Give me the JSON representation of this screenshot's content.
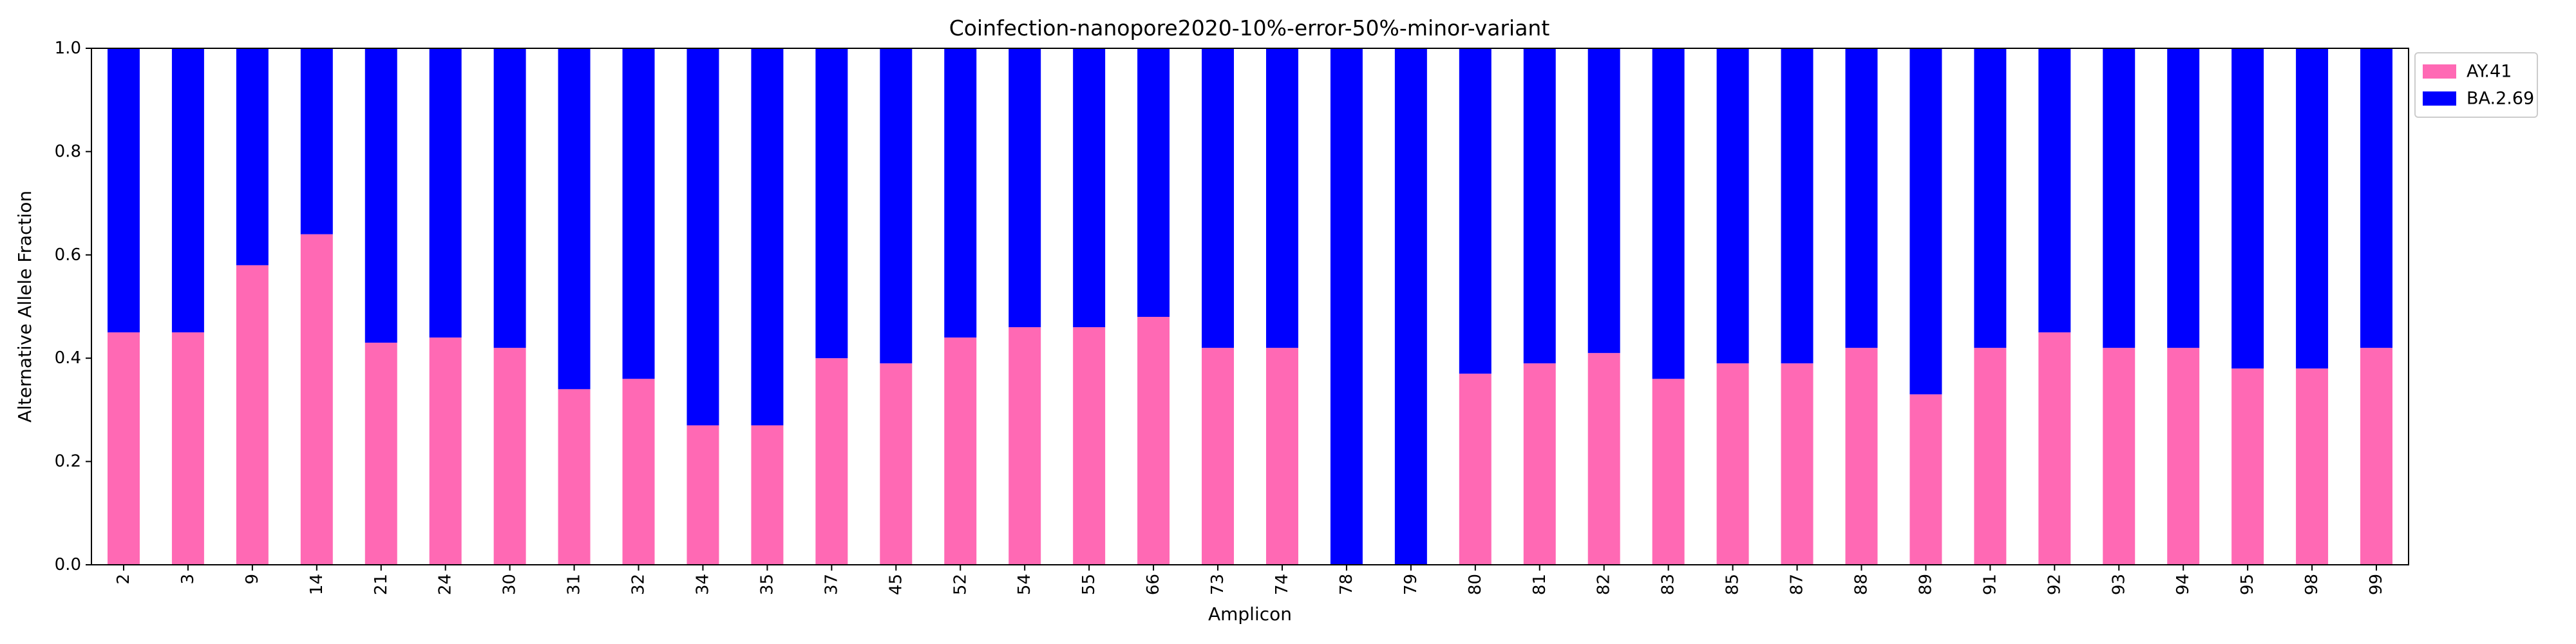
{
  "chart_data": {
    "type": "bar",
    "stacked": true,
    "title": "Coinfection-nanopore2020-10%-error-50%-minor-variant",
    "xlabel": "Amplicon",
    "ylabel": "Alternative Allele Fraction",
    "ylim": [
      0,
      1.0
    ],
    "yticks": [
      "0.0",
      "0.2",
      "0.4",
      "0.6",
      "0.8",
      "1.0"
    ],
    "grid": false,
    "legend_position": "outside-top-right",
    "categories": [
      "2",
      "3",
      "9",
      "14",
      "21",
      "24",
      "30",
      "31",
      "32",
      "34",
      "35",
      "37",
      "45",
      "52",
      "54",
      "55",
      "66",
      "73",
      "74",
      "78",
      "79",
      "80",
      "81",
      "82",
      "83",
      "85",
      "87",
      "88",
      "89",
      "91",
      "92",
      "93",
      "94",
      "95",
      "98",
      "99"
    ],
    "series": [
      {
        "name": "AY.41",
        "color": "#ff69b4",
        "values": [
          0.45,
          0.45,
          0.58,
          0.64,
          0.43,
          0.44,
          0.42,
          0.34,
          0.36,
          0.27,
          0.27,
          0.4,
          0.39,
          0.44,
          0.46,
          0.46,
          0.48,
          0.42,
          0.42,
          0.0,
          0.0,
          0.37,
          0.39,
          0.41,
          0.36,
          0.39,
          0.39,
          0.42,
          0.33,
          0.42,
          0.45,
          0.42,
          0.42,
          0.38,
          0.38,
          0.42
        ]
      },
      {
        "name": "BA.2.69",
        "color": "#0000ff",
        "values": [
          0.55,
          0.55,
          0.42,
          0.36,
          0.57,
          0.56,
          0.58,
          0.66,
          0.64,
          0.73,
          0.73,
          0.6,
          0.61,
          0.56,
          0.54,
          0.54,
          0.52,
          0.58,
          0.58,
          1.0,
          1.0,
          0.63,
          0.61,
          0.59,
          0.64,
          0.61,
          0.61,
          0.58,
          0.67,
          0.58,
          0.55,
          0.58,
          0.58,
          0.62,
          0.62,
          0.58
        ]
      }
    ]
  }
}
